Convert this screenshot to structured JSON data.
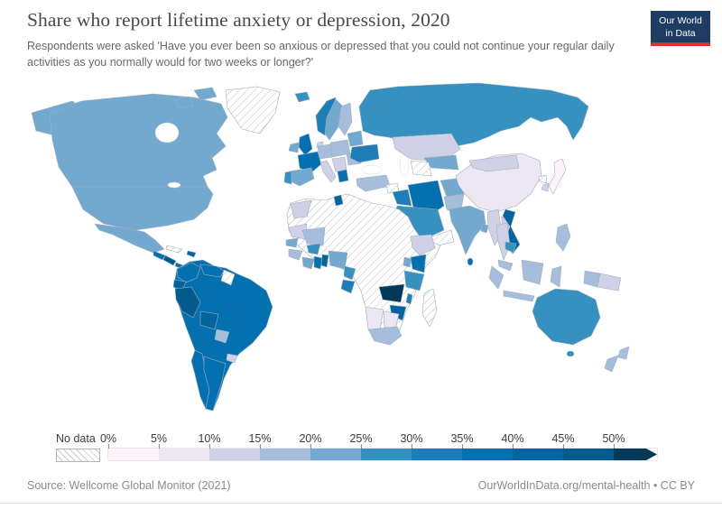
{
  "header": {
    "title": "Share who report lifetime anxiety or depression, 2020",
    "subtitle": "Respondents were asked 'Have you ever been so anxious or depressed that you could not continue your regular daily activities as you normally would for two weeks or longer?'",
    "logo": {
      "line1": "Our World",
      "line2": "in Data",
      "bg_color": "#1d3d63",
      "accent_color": "#d6332c"
    }
  },
  "footer": {
    "source": "Source: Wellcome Global Monitor (2021)",
    "attribution": "OurWorldInData.org/mental-health • CC BY"
  },
  "chart_data": {
    "type": "choropleth_map",
    "title": "Share who report lifetime anxiety or depression, 2020",
    "year": 2020,
    "unit": "%",
    "source": "Wellcome Global Monitor (2021)",
    "legend": {
      "no_data_label": "No data",
      "no_data_pattern": "diagonal-hatch",
      "tick_labels": [
        "0%",
        "5%",
        "10%",
        "15%",
        "20%",
        "25%",
        "30%",
        "35%",
        "40%",
        "45%",
        "50%"
      ],
      "bin_ranges": [
        "0-5%",
        "5-10%",
        "10-15%",
        "15-20%",
        "20-25%",
        "25-30%",
        "30-35%",
        "35-40%",
        "40-45%",
        "45-50%",
        ">50%"
      ],
      "colors": [
        "#fcf4f9",
        "#ece7f2",
        "#d0d1e6",
        "#a6bddb",
        "#74a9cf",
        "#3690c0",
        "#1e7db7",
        "#0570b0",
        "#04649d",
        "#045a8d",
        "#023858"
      ]
    },
    "countries": {
      "canada": 4,
      "united-states": 4,
      "mexico": 4,
      "greenland": "no_data",
      "cuba": "no_data",
      "dominican-republic": 8,
      "guatemala": 7,
      "nicaragua": 9,
      "panama": 7,
      "colombia": 7,
      "venezuela": 7,
      "guyana": "no_data",
      "ecuador": 8,
      "peru": 9,
      "brazil": 7,
      "bolivia": 8,
      "paraguay": 3,
      "chile": 7,
      "argentina": 7,
      "uruguay": 2,
      "iceland": 5,
      "united-kingdom": 7,
      "ireland": 4,
      "norway": 6,
      "sweden": 4,
      "finland": 3,
      "denmark": 2,
      "germany": 3,
      "poland": 3,
      "france": 7,
      "spain": 4,
      "portugal": 5,
      "italy": 2,
      "serbia": 2,
      "greece": 7,
      "romania": 3,
      "ukraine": 6,
      "belarus": 4,
      "russia": 5,
      "kazakhstan": 2,
      "uzbekistan": 4,
      "turkmenistan": "no_data",
      "turkey": 3,
      "syria": "no_data",
      "iraq": 6,
      "iran": 7,
      "saudi-arabia": 5,
      "yemen": "no_data",
      "afghanistan": 4,
      "pakistan": 3,
      "india": 4,
      "sri-lanka": 7,
      "bangladesh": 4,
      "china": 1,
      "mongolia": 2,
      "japan": 0,
      "south-korea": 2,
      "north-korea": "no_data",
      "myanmar": 2,
      "thailand": 2,
      "laos": 2,
      "vietnam": 8,
      "cambodia": 5,
      "malaysia": 3,
      "philippines": 3,
      "indonesia": 3,
      "papua-new-guinea": 2,
      "morocco": 2,
      "tunisia": 8,
      "algeria": "no_data",
      "libya": "no_data",
      "egypt": "no_data",
      "mauritania": 2,
      "mali": 3,
      "senegal": 4,
      "guinea": 3,
      "ivory-coast": 4,
      "ghana": 7,
      "benin": 8,
      "nigeria": 4,
      "burkina-faso": 5,
      "niger": "no_data",
      "chad": "no_data",
      "sudan": "no_data",
      "ethiopia": 2,
      "somalia": "no_data",
      "kenya": 7,
      "uganda": 4,
      "tanzania": 5,
      "dr-congo": "no_data",
      "cameroon": 5,
      "gabon": 6,
      "zambia": 10,
      "zimbabwe": 8,
      "malawi": 6,
      "mozambique": "no_data",
      "madagascar": "no_data",
      "namibia": 1,
      "botswana": 1,
      "south-africa": 3,
      "angola": "no_data",
      "australia": 5,
      "new-zealand": 3
    }
  }
}
